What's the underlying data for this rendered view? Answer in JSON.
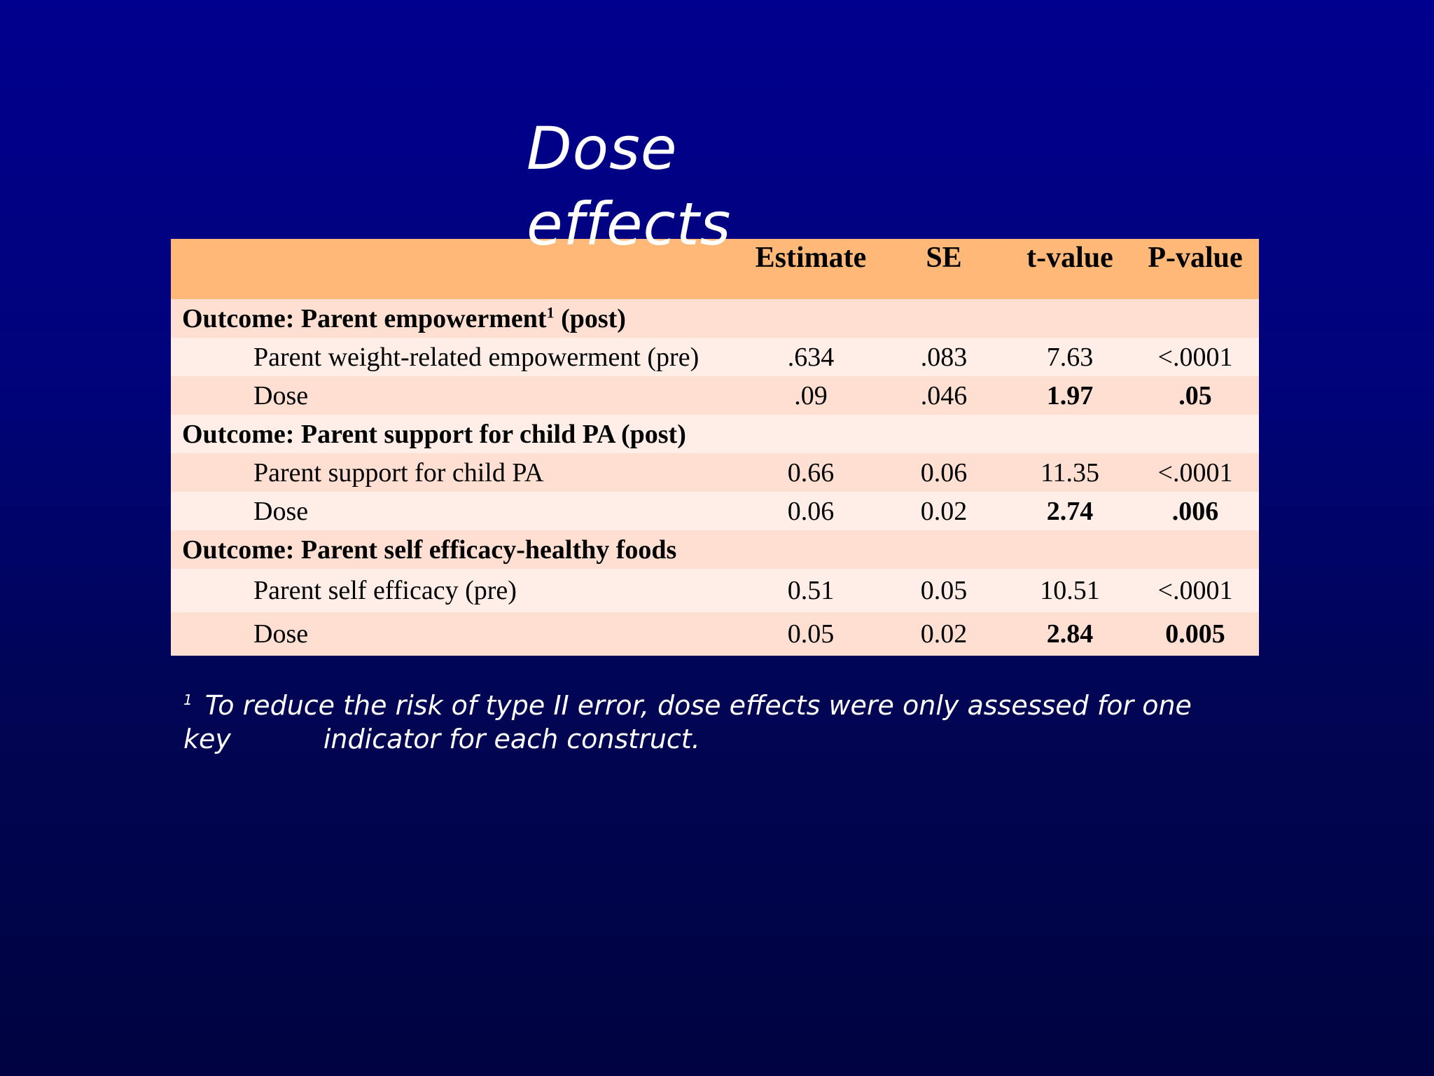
{
  "slide": {
    "title_line1": "Dose",
    "title_line2": "effects"
  },
  "table": {
    "headers": [
      "",
      "Estimate",
      "SE",
      "t-value",
      "P-value"
    ],
    "sections": [
      {
        "label": "Outcome: Parent empowerment",
        "footnote_mark": "1",
        "label_suffix": " (post)",
        "rows": [
          {
            "label": "Parent weight-related empowerment (pre)",
            "estimate": ".634",
            "se": ".083",
            "t": "7.63",
            "p": "<.0001"
          },
          {
            "label": "Dose",
            "estimate": ".09",
            "se": ".046",
            "t": "1.97",
            "p": ".05"
          }
        ]
      },
      {
        "label": "Outcome: Parent support for child PA (post)",
        "rows": [
          {
            "label": "Parent support for child PA",
            "estimate": "0.66",
            "se": "0.06",
            "t": "11.35",
            "p": "<.0001"
          },
          {
            "label": "Dose",
            "estimate": "0.06",
            "se": "0.02",
            "t": "2.74",
            "p": ".006"
          }
        ]
      },
      {
        "label": "Outcome: Parent self efficacy-healthy foods",
        "rows": [
          {
            "label": "Parent self efficacy (pre)",
            "estimate": "0.51",
            "se": "0.05",
            "t": "10.51",
            "p": "<.0001"
          },
          {
            "label": "Dose",
            "estimate": "0.05",
            "se": "0.02",
            "t": "2.84",
            "p": "0.005"
          }
        ]
      }
    ]
  },
  "footnote": {
    "marker": "1",
    "line1": "To reduce the risk of type II error, dose effects were only assessed for one",
    "line2_start": "key",
    "line2_end": "indicator for each construct."
  },
  "colors": {
    "header_fill": "#feb877",
    "row_fill_a": "#fedfd1",
    "row_fill_b": "#feeee7",
    "background_top": "#00008e",
    "background_bottom": "#000340"
  }
}
